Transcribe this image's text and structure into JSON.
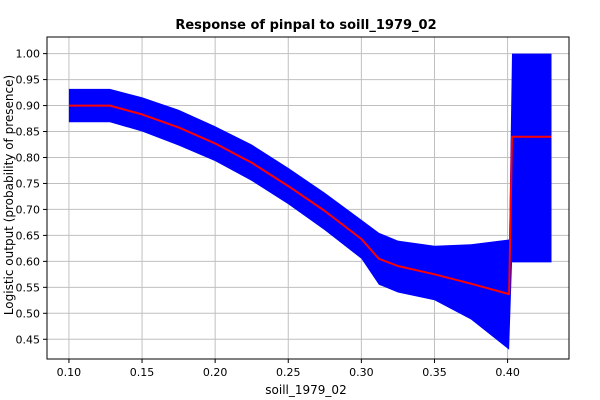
{
  "chart_data": {
    "type": "area",
    "title": "Response of pinpal to soill_1979_02",
    "xlabel": "soill_1979_02",
    "ylabel": "Logistic output (probability of presence)",
    "xlim": [
      0.085,
      0.442
    ],
    "ylim": [
      0.412,
      1.032
    ],
    "xticks": [
      "0.10",
      "0.15",
      "0.20",
      "0.25",
      "0.30",
      "0.35",
      "0.40"
    ],
    "yticks": [
      "0.45",
      "0.50",
      "0.55",
      "0.60",
      "0.65",
      "0.70",
      "0.75",
      "0.80",
      "0.85",
      "0.90",
      "0.95",
      "1.00"
    ],
    "grid": true,
    "colors": {
      "band": "#0000ff",
      "mean": "#ff0000"
    },
    "series": [
      {
        "role": "mean",
        "x": [
          0.1,
          0.128,
          0.15,
          0.175,
          0.2,
          0.225,
          0.25,
          0.275,
          0.3,
          0.312,
          0.325,
          0.35,
          0.375,
          0.401,
          0.403,
          0.43
        ],
        "values": [
          0.9,
          0.9,
          0.883,
          0.858,
          0.827,
          0.79,
          0.745,
          0.697,
          0.643,
          0.605,
          0.591,
          0.575,
          0.557,
          0.537,
          0.84,
          0.84
        ]
      },
      {
        "role": "band-upper",
        "x": [
          0.1,
          0.128,
          0.15,
          0.175,
          0.2,
          0.225,
          0.25,
          0.275,
          0.3,
          0.312,
          0.325,
          0.35,
          0.375,
          0.401,
          0.403,
          0.43
        ],
        "values": [
          0.932,
          0.932,
          0.916,
          0.892,
          0.86,
          0.825,
          0.78,
          0.732,
          0.68,
          0.655,
          0.64,
          0.63,
          0.633,
          0.642,
          1.0,
          1.0
        ]
      },
      {
        "role": "band-lower",
        "x": [
          0.1,
          0.128,
          0.15,
          0.175,
          0.2,
          0.225,
          0.25,
          0.275,
          0.3,
          0.312,
          0.325,
          0.35,
          0.375,
          0.401,
          0.403,
          0.43
        ],
        "values": [
          0.868,
          0.868,
          0.85,
          0.823,
          0.793,
          0.755,
          0.71,
          0.66,
          0.605,
          0.555,
          0.54,
          0.525,
          0.488,
          0.43,
          0.598,
          0.598
        ]
      }
    ]
  }
}
